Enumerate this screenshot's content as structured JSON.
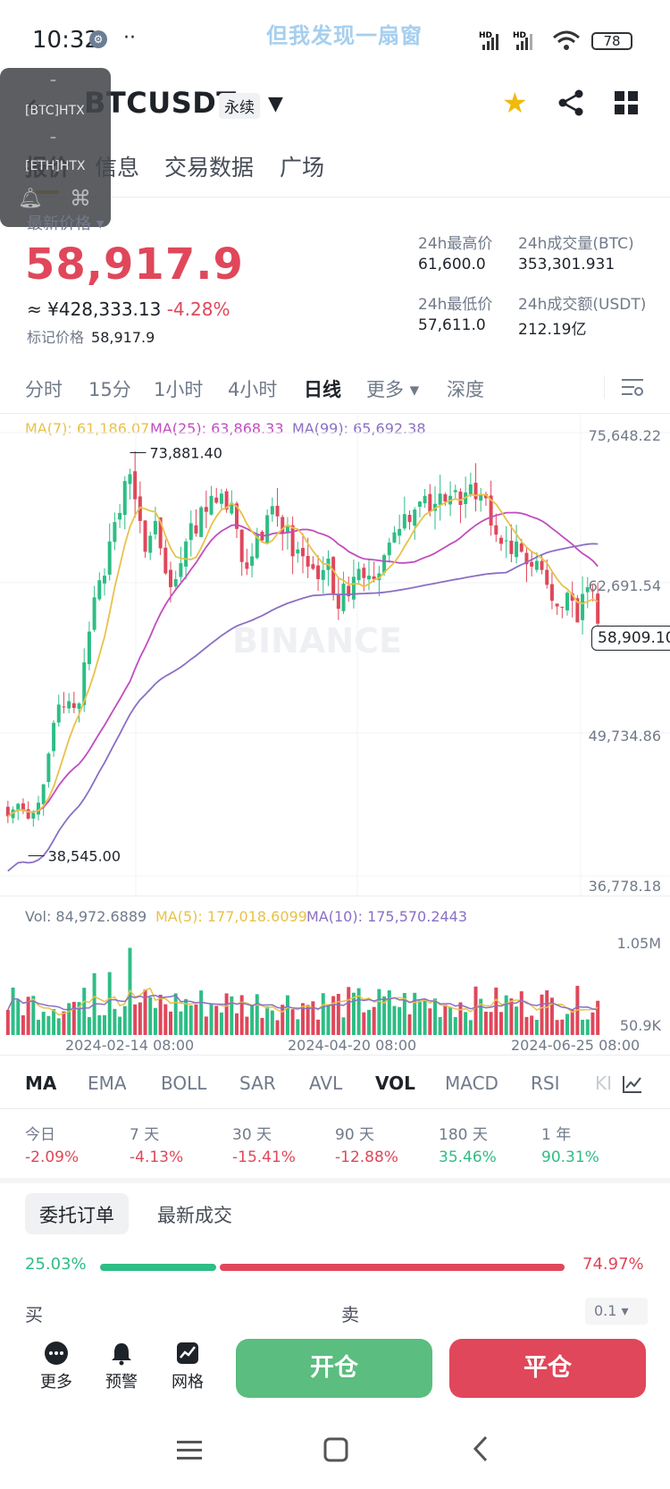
{
  "status_bar": {
    "time": "10:32",
    "notification": "但我发现一扇窗",
    "battery": "78"
  },
  "header": {
    "symbol": "BTCUSDT",
    "contract_type": "永续"
  },
  "overlay": {
    "items": [
      "–",
      "[BTC]HTX",
      "–",
      "[ETH]HTX"
    ]
  },
  "tabs": [
    {
      "label": "报价",
      "active": true
    },
    {
      "label": "信息"
    },
    {
      "label": "交易数据"
    },
    {
      "label": "广场"
    }
  ],
  "price": {
    "label": "最新价格",
    "last": "58,917.9",
    "cny": "≈ ¥428,333.13",
    "change": "-4.28%",
    "mark_label": "标记价格",
    "mark_value": "58,917.9"
  },
  "stats": [
    {
      "label": "24h最高价",
      "value": "61,600.0"
    },
    {
      "label": "24h成交量(BTC)",
      "value": "353,301.931"
    },
    {
      "label": "24h最低价",
      "value": "57,611.0"
    },
    {
      "label": "24h成交额(USDT)",
      "value": "212.19亿"
    }
  ],
  "intervals": [
    {
      "label": "分时"
    },
    {
      "label": "15分"
    },
    {
      "label": "1小时"
    },
    {
      "label": "4小时"
    },
    {
      "label": "日线",
      "active": true
    },
    {
      "label": "更多 ▾"
    },
    {
      "label": "深度"
    }
  ],
  "ma_legend": {
    "ma7": "MA(7): 61,186.07",
    "ma25": "MA(25): 63,868.33",
    "ma99": "MA(99): 65,692.38"
  },
  "price_axis": [
    "75,648.22",
    "62,691.54",
    "49,734.86",
    "36,778.18"
  ],
  "current_price_tag": "58,909.10",
  "chart_annotations": {
    "high": "73,881.40",
    "low": "38,545.00"
  },
  "watermark": "BINANCE",
  "vol_legend": {
    "vol": "Vol: 84,972.6889",
    "ma5": "MA(5): 177,018.6099",
    "ma10": "MA(10): 175,570.2443"
  },
  "vol_axis": [
    "1.05M",
    "50.9K"
  ],
  "date_axis": [
    "2024-02-14 08:00",
    "2024-04-20 08:00",
    "2024-06-25 08:00"
  ],
  "indicators": [
    {
      "label": "MA"
    },
    {
      "label": "EMA"
    },
    {
      "label": "BOLL"
    },
    {
      "label": "SAR"
    },
    {
      "label": "AVL"
    },
    {
      "label": "VOL",
      "active": true
    },
    {
      "label": "MACD"
    },
    {
      "label": "RSI"
    },
    {
      "label": "KI"
    }
  ],
  "periods": [
    {
      "label": "今日",
      "value": "-2.09%"
    },
    {
      "label": "7 天",
      "value": "-4.13%"
    },
    {
      "label": "30 天",
      "value": "-15.41%"
    },
    {
      "label": "90 天",
      "value": "-12.88%"
    },
    {
      "label": "180 天",
      "value": "35.46%"
    },
    {
      "label": "1 年",
      "value": "90.31%"
    }
  ],
  "order_tabs": [
    {
      "label": "委托订单",
      "active": true
    },
    {
      "label": "最新成交"
    }
  ],
  "order_ratio": {
    "buy": "25.03%",
    "sell": "74.97%",
    "buy_fraction": 0.2503
  },
  "order_labels": {
    "buy": "买",
    "sell": "卖",
    "qty": "0.1"
  },
  "bottom": {
    "more": "更多",
    "alert": "预警",
    "grid": "网格",
    "open": "开仓",
    "close": "平仓"
  },
  "colors": {
    "up": "#2ebd85",
    "down": "#e0475a",
    "accent": "#f0b90b",
    "ma7": "#e7c24a",
    "ma25": "#c04dc0",
    "ma99": "#8a6fc4"
  },
  "chart_data": {
    "type": "candlestick",
    "x_labels": [
      "2024-02-14 08:00",
      "2024-04-20 08:00",
      "2024-06-25 08:00"
    ],
    "ylim": [
      36778.18,
      75648.22
    ],
    "close": [
      42000,
      42600,
      43100,
      42500,
      41800,
      42300,
      43200,
      44800,
      47500,
      50200,
      51800,
      51600,
      52100,
      51500,
      51900,
      55500,
      58200,
      61200,
      62700,
      63100,
      66100,
      67800,
      68600,
      71400,
      72000,
      69800,
      67900,
      65200,
      66600,
      67900,
      65500,
      63300,
      62100,
      62800,
      64200,
      66100,
      67700,
      66800,
      69100,
      68700,
      70100,
      69500,
      70300,
      68900,
      69500,
      67200,
      64300,
      63700,
      64800,
      66700,
      66200,
      68400,
      69200,
      68300,
      66800,
      67400,
      64800,
      65400,
      64800,
      63900,
      63700,
      62800,
      63600,
      64600,
      61500,
      60200,
      62400,
      61300,
      63000,
      63700,
      62900,
      63100,
      62800,
      63300,
      64900,
      66000,
      66900,
      67200,
      68500,
      67800,
      68900,
      69600,
      70100,
      68700,
      69400,
      70300,
      69600,
      70100,
      70600,
      69300,
      70400,
      71100,
      69800,
      70200,
      69900,
      67500,
      66700,
      65900,
      66200,
      65000,
      66100,
      65200,
      64100,
      63900,
      64400,
      63600,
      62300,
      60900,
      60400,
      60300,
      61600,
      60900,
      59000,
      61500,
      62100,
      61800,
      58900
    ],
    "ma7_last": 61186.07,
    "ma25_last": 63868.33,
    "ma99_last": 65692.38,
    "high_annotation": 73881.4,
    "low_annotation": 38545.0,
    "volume_ylim": [
      50900,
      1050000
    ]
  }
}
